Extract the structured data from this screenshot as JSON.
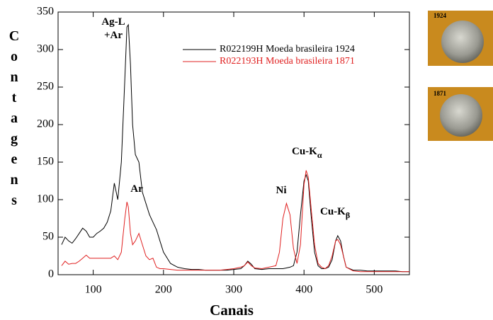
{
  "chart_data": {
    "type": "line",
    "xlabel": "Canais",
    "ylabel": "Contagens",
    "xlim": [
      50,
      550
    ],
    "ylim": [
      0,
      350
    ],
    "xticks": [
      100,
      200,
      300,
      400,
      500
    ],
    "yticks": [
      0,
      50,
      100,
      150,
      200,
      250,
      300,
      350
    ],
    "x": [
      55,
      60,
      65,
      70,
      75,
      80,
      85,
      90,
      95,
      100,
      105,
      110,
      115,
      120,
      125,
      130,
      135,
      140,
      145,
      148,
      150,
      153,
      156,
      160,
      165,
      170,
      175,
      180,
      185,
      190,
      195,
      200,
      210,
      220,
      230,
      240,
      250,
      260,
      270,
      280,
      290,
      300,
      310,
      315,
      320,
      325,
      330,
      340,
      350,
      360,
      365,
      370,
      375,
      380,
      385,
      390,
      395,
      400,
      403,
      406,
      410,
      415,
      420,
      425,
      430,
      435,
      440,
      445,
      448,
      452,
      456,
      460,
      470,
      480,
      490,
      500,
      510,
      520,
      530,
      540,
      550
    ],
    "series": [
      {
        "name": "R022199H Moeda brasileira 1924",
        "color": "#000000",
        "values": [
          40,
          50,
          45,
          42,
          48,
          55,
          62,
          58,
          50,
          50,
          55,
          58,
          62,
          70,
          85,
          122,
          100,
          150,
          260,
          330,
          333,
          280,
          200,
          160,
          150,
          110,
          95,
          80,
          70,
          60,
          45,
          30,
          15,
          10,
          8,
          7,
          7,
          6,
          6,
          6,
          6,
          7,
          8,
          12,
          18,
          14,
          8,
          7,
          8,
          8,
          8,
          8,
          9,
          10,
          12,
          30,
          80,
          125,
          133,
          125,
          80,
          30,
          12,
          8,
          8,
          10,
          20,
          45,
          52,
          45,
          25,
          10,
          6,
          6,
          5,
          5,
          5,
          5,
          5,
          4,
          4
        ]
      },
      {
        "name": "R022193H Moeda brasileira 1871",
        "color": "#e02020",
        "values": [
          12,
          18,
          14,
          15,
          15,
          18,
          22,
          26,
          22,
          22,
          22,
          22,
          22,
          22,
          22,
          25,
          20,
          30,
          75,
          97,
          90,
          55,
          40,
          45,
          55,
          40,
          25,
          20,
          22,
          10,
          8,
          8,
          7,
          6,
          6,
          6,
          6,
          6,
          6,
          6,
          7,
          8,
          10,
          12,
          17,
          12,
          9,
          8,
          10,
          12,
          30,
          75,
          95,
          80,
          35,
          15,
          40,
          120,
          139,
          130,
          90,
          40,
          15,
          10,
          8,
          12,
          25,
          45,
          47,
          40,
          25,
          10,
          5,
          4,
          4,
          4,
          4,
          4,
          4,
          4,
          4
        ]
      }
    ],
    "annotations": [
      {
        "text": "Ag-L"
      },
      {
        "text": "+Ar"
      },
      {
        "text": "Ar"
      },
      {
        "text": "Ni"
      },
      {
        "text": "Cu-K",
        "subscript": "α"
      },
      {
        "text": "Cu-K",
        "subscript": "β"
      }
    ]
  },
  "photos": [
    {
      "label": "1924"
    },
    {
      "label": "1871"
    }
  ]
}
